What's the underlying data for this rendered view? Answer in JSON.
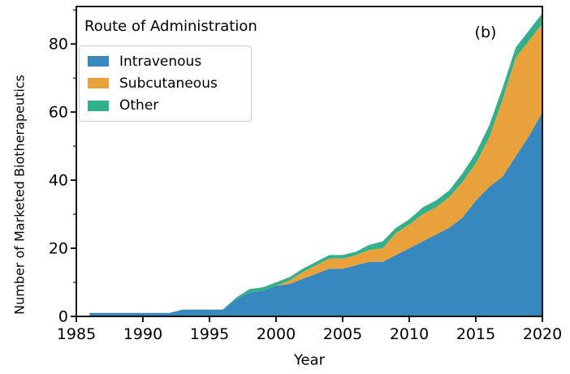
{
  "figure": {
    "panel_label": "(b)",
    "background": "#ffffff",
    "axes": {
      "x": {
        "label": "Year",
        "tick_labels": [
          "1985",
          "1990",
          "1995",
          "2000",
          "2005",
          "2010",
          "2015",
          "2020"
        ],
        "range": [
          1985,
          2020
        ]
      },
      "y": {
        "label": "Number of Marketed Biotherapeutics",
        "tick_labels": [
          "0",
          "20",
          "40",
          "60",
          "80"
        ],
        "minor_tick_step": 10,
        "range": [
          0,
          91
        ]
      }
    },
    "legend": {
      "title": "Route of Administration",
      "entries": [
        {
          "label": "Intravenous",
          "color": "#3688BE"
        },
        {
          "label": "Subcutaneous",
          "color": "#E9A23B"
        },
        {
          "label": "Other",
          "color": "#32B08C"
        }
      ]
    }
  },
  "chart_data": {
    "type": "area",
    "stacked": true,
    "title": "Route of Administration",
    "xlabel": "Year",
    "ylabel": "Number of Marketed Biotherapeutics",
    "xlim": [
      1985,
      2020
    ],
    "ylim": [
      0,
      91
    ],
    "grid": false,
    "legend_position": "upper left",
    "x": [
      1986,
      1987,
      1988,
      1989,
      1990,
      1991,
      1992,
      1993,
      1994,
      1995,
      1996,
      1997,
      1998,
      1999,
      2000,
      2001,
      2002,
      2003,
      2004,
      2005,
      2006,
      2007,
      2008,
      2009,
      2010,
      2011,
      2012,
      2013,
      2014,
      2015,
      2016,
      2017,
      2018,
      2019,
      2020
    ],
    "series": [
      {
        "name": "Intravenous",
        "color": "#3688BE",
        "values": [
          1,
          1,
          1,
          1,
          1,
          1,
          1,
          2,
          2,
          2,
          2,
          5,
          7,
          7.5,
          9,
          9.5,
          11,
          12.5,
          14,
          14,
          15,
          16,
          16,
          18,
          20,
          22,
          24,
          26,
          29,
          34,
          38,
          41,
          47,
          53,
          60
        ]
      },
      {
        "name": "Subcutaneous",
        "color": "#E9A23B",
        "values": [
          0,
          0,
          0,
          0,
          0,
          0,
          0,
          0,
          0,
          0,
          0,
          0,
          0,
          0,
          0,
          1,
          2,
          2.5,
          3,
          3,
          3,
          3.5,
          4,
          6.5,
          7,
          8,
          8,
          9,
          10.5,
          11,
          14.5,
          22.5,
          29,
          28,
          26
        ]
      },
      {
        "name": "Other",
        "color": "#32B08C",
        "values": [
          0,
          0,
          0,
          0,
          0,
          0,
          0,
          0,
          0,
          0,
          0,
          0.5,
          1,
          1,
          1,
          1,
          1,
          1,
          1,
          1,
          1,
          1.5,
          2,
          1.5,
          1.5,
          2,
          2,
          2,
          2.5,
          3,
          3.5,
          3.5,
          3,
          3,
          3
        ]
      }
    ]
  }
}
